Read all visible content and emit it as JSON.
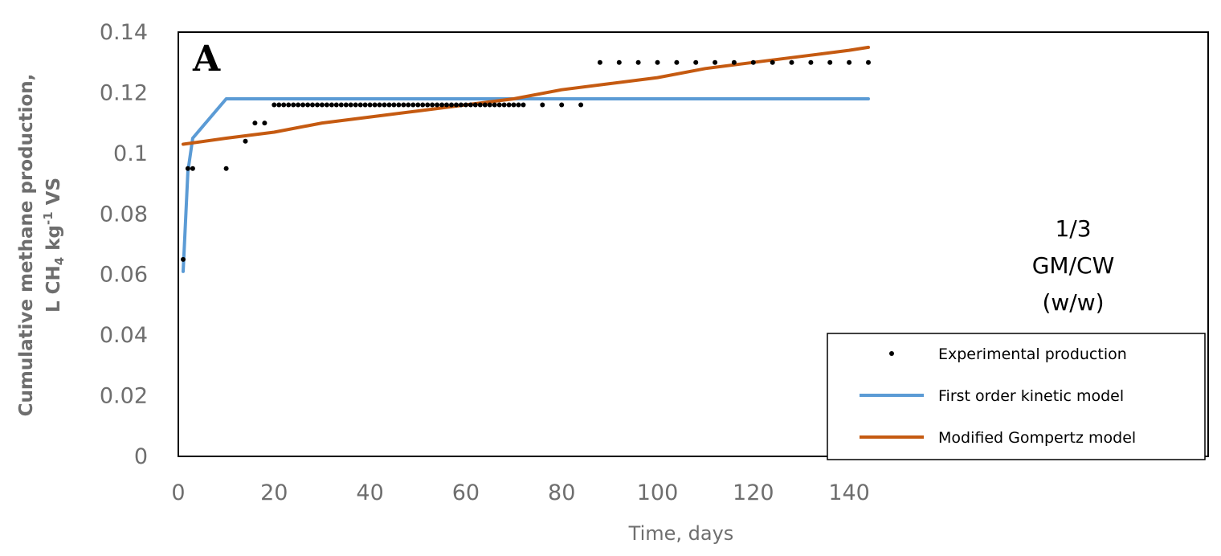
{
  "chart_data": {
    "type": "line",
    "panel_label": "A",
    "xlabel": "Time, days",
    "ylabel_line1": "Cumulative methane production,",
    "ylabel_line2_pre": "L CH",
    "ylabel_line2_sub": "4",
    "ylabel_line2_mid": " kg",
    "ylabel_line2_sup": "-1",
    "ylabel_line2_post": " VS",
    "xlim": [
      0,
      150
    ],
    "ylim": [
      0,
      0.14
    ],
    "xticks": [
      0,
      20,
      40,
      60,
      80,
      100,
      120,
      140
    ],
    "yticks": [
      0,
      0.02,
      0.04,
      0.06,
      0.08,
      0.1,
      0.12,
      0.14
    ],
    "ytick_labels": [
      "0",
      "0.02",
      "0.04",
      "0.06",
      "0.08",
      "0.1",
      "0.12",
      "0.14"
    ],
    "annotation": [
      "1/3",
      "GM/CW",
      "(w/w)"
    ],
    "legend_position": "bottom-right",
    "series": [
      {
        "name": "Experimental production",
        "kind": "scatter",
        "color": "#000000",
        "x": [
          1,
          2,
          3,
          10,
          14,
          16,
          18,
          20,
          21,
          22,
          23,
          24,
          25,
          26,
          27,
          28,
          29,
          30,
          31,
          32,
          33,
          34,
          35,
          36,
          37,
          38,
          39,
          40,
          41,
          42,
          43,
          44,
          45,
          46,
          47,
          48,
          49,
          50,
          51,
          52,
          53,
          54,
          55,
          56,
          57,
          58,
          59,
          60,
          61,
          62,
          63,
          64,
          65,
          66,
          67,
          68,
          69,
          70,
          71,
          72,
          76,
          80,
          84,
          88,
          92,
          96,
          100,
          104,
          108,
          112,
          116,
          120,
          124,
          128,
          132,
          136,
          140,
          144
        ],
        "y": [
          0.065,
          0.095,
          0.095,
          0.095,
          0.104,
          0.11,
          0.11,
          0.116,
          0.116,
          0.116,
          0.116,
          0.116,
          0.116,
          0.116,
          0.116,
          0.116,
          0.116,
          0.116,
          0.116,
          0.116,
          0.116,
          0.116,
          0.116,
          0.116,
          0.116,
          0.116,
          0.116,
          0.116,
          0.116,
          0.116,
          0.116,
          0.116,
          0.116,
          0.116,
          0.116,
          0.116,
          0.116,
          0.116,
          0.116,
          0.116,
          0.116,
          0.116,
          0.116,
          0.116,
          0.116,
          0.116,
          0.116,
          0.116,
          0.116,
          0.116,
          0.116,
          0.116,
          0.116,
          0.116,
          0.116,
          0.116,
          0.116,
          0.116,
          0.116,
          0.116,
          0.116,
          0.116,
          0.116,
          0.13,
          0.13,
          0.13,
          0.13,
          0.13,
          0.13,
          0.13,
          0.13,
          0.13,
          0.13,
          0.13,
          0.13,
          0.13,
          0.13,
          0.13
        ]
      },
      {
        "name": "First order kinetic model",
        "kind": "line",
        "color": "#5b9bd5",
        "x": [
          1,
          2,
          3,
          10,
          144
        ],
        "y": [
          0.061,
          0.094,
          0.105,
          0.118,
          0.118
        ]
      },
      {
        "name": "Modified Gompertz model",
        "kind": "line",
        "color": "#c55a11",
        "x": [
          1,
          10,
          20,
          30,
          40,
          50,
          60,
          70,
          80,
          90,
          100,
          110,
          120,
          130,
          140,
          144
        ],
        "y": [
          0.103,
          0.105,
          0.107,
          0.11,
          0.112,
          0.114,
          0.116,
          0.118,
          0.121,
          0.123,
          0.125,
          0.128,
          0.13,
          0.132,
          0.134,
          0.135
        ]
      }
    ]
  }
}
